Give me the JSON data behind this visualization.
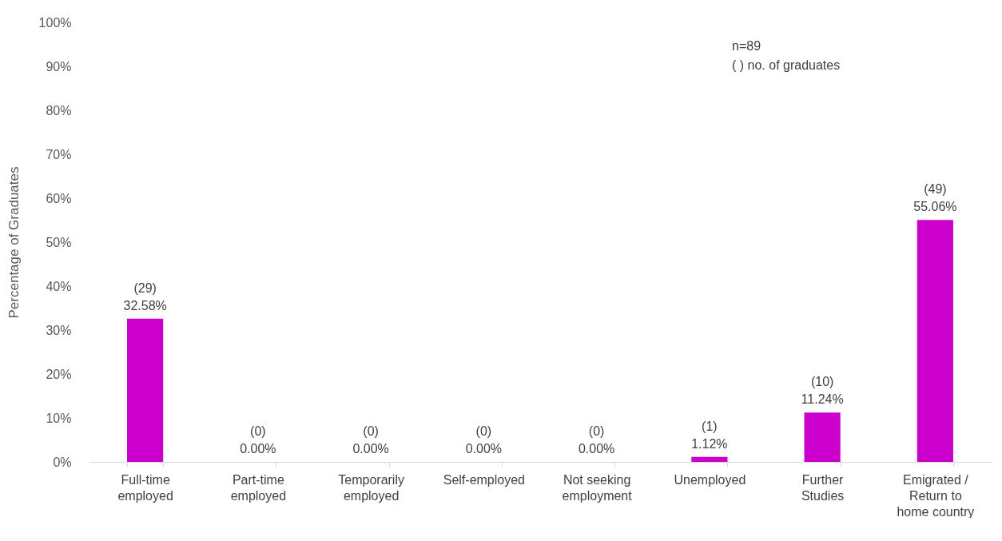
{
  "chart_data": {
    "type": "bar",
    "ylabel": "Percentage of Graduates",
    "categories": [
      "Full-time employed",
      "Part-time employed",
      "Temporarily employed",
      "Self-employed",
      "Not seeking employment",
      "Unemployed",
      "Further Studies",
      "Emigrated / Return to home country"
    ],
    "values": [
      32.58,
      0,
      0,
      0,
      0,
      1.12,
      11.24,
      55.06
    ],
    "value_labels": [
      "(29) 32.58%",
      "(0) 0.00%",
      "(0) 0.00%",
      "(0) 0.00%",
      "(0) 0.00%",
      "(1) 1.12%",
      "(10) 11.24%",
      "(49) 55.06%"
    ],
    "color": "#cc00cc",
    "ylim": [
      0,
      100
    ],
    "yticks": [
      {
        "value": 0,
        "label": "0%"
      },
      {
        "value": 10,
        "label": "10%"
      },
      {
        "value": 20,
        "label": "20%"
      },
      {
        "value": 30,
        "label": "30%"
      },
      {
        "value": 40,
        "label": "40%"
      },
      {
        "value": 50,
        "label": "50%"
      },
      {
        "value": 60,
        "label": "60%"
      },
      {
        "value": 70,
        "label": "70%"
      },
      {
        "value": 80,
        "label": "80%"
      },
      {
        "value": 90,
        "label": "90%"
      },
      {
        "value": 100,
        "label": "100%"
      }
    ],
    "grid": false,
    "annotations": [
      "n=89",
      "( ) no. of graduates"
    ]
  }
}
